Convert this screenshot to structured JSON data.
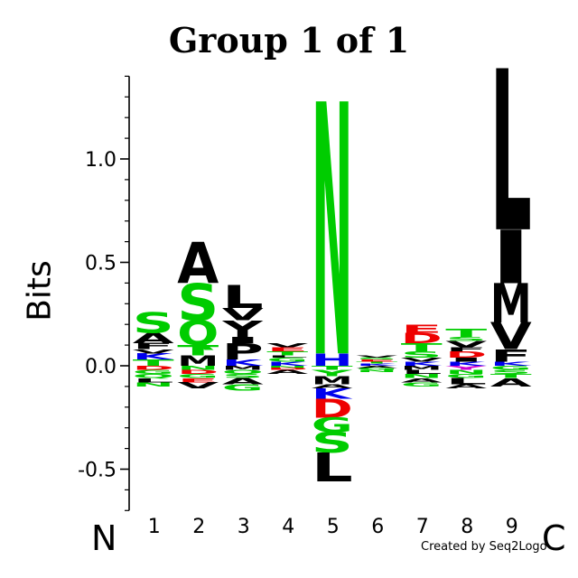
{
  "chart_data": {
    "type": "sequence_logo",
    "title": "Group 1 of 1",
    "ylabel": "Bits",
    "xlabel": "",
    "ylim": [
      -0.7,
      1.4
    ],
    "yticks": [
      -0.5,
      0.0,
      0.5,
      1.0
    ],
    "ytick_labels": [
      "-0.5",
      "0.0",
      "0.5",
      "1.0"
    ],
    "positions": [
      "1",
      "2",
      "3",
      "4",
      "5",
      "6",
      "7",
      "8",
      "9"
    ],
    "n_terminus": "N",
    "c_terminus": "C",
    "credit": "Created by Seq2Logo",
    "colors": {
      "green": "#00cc00",
      "blue": "#0000ee",
      "red": "#ee0000",
      "black": "#000000",
      "purple": "#cc00cc"
    },
    "columns": [
      {
        "position": "1",
        "positive": [
          {
            "letter": "T",
            "height": 0.03,
            "color": "green"
          },
          {
            "letter": "K",
            "height": 0.03,
            "color": "blue"
          },
          {
            "letter": "V",
            "height": 0.02,
            "color": "black"
          },
          {
            "letter": "F",
            "height": 0.03,
            "color": "black"
          },
          {
            "letter": "A",
            "height": 0.05,
            "color": "black"
          },
          {
            "letter": "S",
            "height": 0.1,
            "color": "green"
          }
        ],
        "negative": [
          {
            "letter": "D",
            "height": 0.02,
            "color": "red"
          },
          {
            "letter": "G",
            "height": 0.02,
            "color": "green"
          },
          {
            "letter": "Q",
            "height": 0.02,
            "color": "green"
          },
          {
            "letter": "L",
            "height": 0.02,
            "color": "black"
          },
          {
            "letter": "N",
            "height": 0.02,
            "color": "green"
          }
        ]
      },
      {
        "position": "2",
        "positive": [
          {
            "letter": "M",
            "height": 0.05,
            "color": "black"
          },
          {
            "letter": "T",
            "height": 0.05,
            "color": "green"
          },
          {
            "letter": "Q",
            "height": 0.12,
            "color": "green"
          },
          {
            "letter": "S",
            "height": 0.18,
            "color": "green"
          },
          {
            "letter": "A",
            "height": 0.2,
            "color": "black"
          }
        ],
        "negative": [
          {
            "letter": "N",
            "height": 0.02,
            "color": "green"
          },
          {
            "letter": "D",
            "height": 0.02,
            "color": "red"
          },
          {
            "letter": "G",
            "height": 0.02,
            "color": "green"
          },
          {
            "letter": "E",
            "height": 0.02,
            "color": "red"
          },
          {
            "letter": "V",
            "height": 0.03,
            "color": "black"
          }
        ]
      },
      {
        "position": "3",
        "positive": [
          {
            "letter": "K",
            "height": 0.03,
            "color": "blue"
          },
          {
            "letter": "P",
            "height": 0.08,
            "color": "black"
          },
          {
            "letter": "I",
            "height": 0.03,
            "color": "black"
          },
          {
            "letter": "Y",
            "height": 0.08,
            "color": "black"
          },
          {
            "letter": "V",
            "height": 0.06,
            "color": "black"
          },
          {
            "letter": "L",
            "height": 0.11,
            "color": "black"
          }
        ],
        "negative": [
          {
            "letter": "M",
            "height": 0.02,
            "color": "black"
          },
          {
            "letter": "Q",
            "height": 0.02,
            "color": "green"
          },
          {
            "letter": "S",
            "height": 0.02,
            "color": "green"
          },
          {
            "letter": "A",
            "height": 0.03,
            "color": "black"
          },
          {
            "letter": "G",
            "height": 0.03,
            "color": "green"
          }
        ]
      },
      {
        "position": "4",
        "positive": [
          {
            "letter": "K",
            "height": 0.02,
            "color": "blue"
          },
          {
            "letter": "G",
            "height": 0.02,
            "color": "green"
          },
          {
            "letter": "L",
            "height": 0.01,
            "color": "black"
          },
          {
            "letter": "T",
            "height": 0.02,
            "color": "green"
          },
          {
            "letter": "E",
            "height": 0.02,
            "color": "red"
          },
          {
            "letter": "V",
            "height": 0.02,
            "color": "black"
          }
        ],
        "negative": [
          {
            "letter": "N",
            "height": 0.01,
            "color": "green"
          },
          {
            "letter": "D",
            "height": 0.01,
            "color": "red"
          },
          {
            "letter": "A",
            "height": 0.02,
            "color": "black"
          }
        ]
      },
      {
        "position": "5",
        "positive": [
          {
            "letter": "H",
            "height": 0.06,
            "color": "blue"
          },
          {
            "letter": "N",
            "height": 1.22,
            "color": "green"
          }
        ],
        "negative": [
          {
            "letter": "T",
            "height": 0.02,
            "color": "green"
          },
          {
            "letter": "Y",
            "height": 0.03,
            "color": "green"
          },
          {
            "letter": "M",
            "height": 0.04,
            "color": "black"
          },
          {
            "letter": "A",
            "height": 0.02,
            "color": "black"
          },
          {
            "letter": "K",
            "height": 0.05,
            "color": "blue"
          },
          {
            "letter": "D",
            "height": 0.09,
            "color": "red"
          },
          {
            "letter": "G",
            "height": 0.07,
            "color": "green"
          },
          {
            "letter": "S",
            "height": 0.1,
            "color": "green"
          },
          {
            "letter": "L",
            "height": 0.14,
            "color": "black"
          }
        ]
      },
      {
        "position": "6",
        "positive": [
          {
            "letter": "K",
            "height": 0.01,
            "color": "blue"
          },
          {
            "letter": "T",
            "height": 0.01,
            "color": "green"
          },
          {
            "letter": "E",
            "height": 0.01,
            "color": "red"
          },
          {
            "letter": "S",
            "height": 0.01,
            "color": "green"
          },
          {
            "letter": "V",
            "height": 0.01,
            "color": "black"
          }
        ],
        "negative": [
          {
            "letter": "A",
            "height": 0.01,
            "color": "black"
          },
          {
            "letter": "G",
            "height": 0.01,
            "color": "green"
          },
          {
            "letter": "N",
            "height": 0.01,
            "color": "green"
          }
        ]
      },
      {
        "position": "7",
        "positive": [
          {
            "letter": "K",
            "height": 0.02,
            "color": "blue"
          },
          {
            "letter": "V",
            "height": 0.02,
            "color": "black"
          },
          {
            "letter": "S",
            "height": 0.03,
            "color": "green"
          },
          {
            "letter": "T",
            "height": 0.04,
            "color": "green"
          },
          {
            "letter": "D",
            "height": 0.05,
            "color": "red"
          },
          {
            "letter": "E",
            "height": 0.04,
            "color": "red"
          }
        ],
        "negative": [
          {
            "letter": "M",
            "height": 0.02,
            "color": "black"
          },
          {
            "letter": "L",
            "height": 0.02,
            "color": "black"
          },
          {
            "letter": "N",
            "height": 0.02,
            "color": "green"
          },
          {
            "letter": "A",
            "height": 0.02,
            "color": "black"
          },
          {
            "letter": "G",
            "height": 0.02,
            "color": "green"
          }
        ]
      },
      {
        "position": "8",
        "positive": [
          {
            "letter": "K",
            "height": 0.02,
            "color": "blue"
          },
          {
            "letter": "I",
            "height": 0.02,
            "color": "black"
          },
          {
            "letter": "D",
            "height": 0.03,
            "color": "red"
          },
          {
            "letter": "F",
            "height": 0.02,
            "color": "black"
          },
          {
            "letter": "V",
            "height": 0.03,
            "color": "black"
          },
          {
            "letter": "S",
            "height": 0.02,
            "color": "green"
          },
          {
            "letter": "T",
            "height": 0.04,
            "color": "green"
          }
        ],
        "negative": [
          {
            "letter": "Y",
            "height": 0.02,
            "color": "purple"
          },
          {
            "letter": "N",
            "height": 0.02,
            "color": "green"
          },
          {
            "letter": "G",
            "height": 0.02,
            "color": "green"
          },
          {
            "letter": "L",
            "height": 0.03,
            "color": "black"
          },
          {
            "letter": "A",
            "height": 0.02,
            "color": "black"
          }
        ]
      },
      {
        "position": "9",
        "positive": [
          {
            "letter": "K",
            "height": 0.02,
            "color": "blue"
          },
          {
            "letter": "F",
            "height": 0.06,
            "color": "black"
          },
          {
            "letter": "V",
            "height": 0.13,
            "color": "black"
          },
          {
            "letter": "M",
            "height": 0.19,
            "color": "black"
          },
          {
            "letter": "I",
            "height": 0.26,
            "color": "black"
          },
          {
            "letter": "L",
            "height": 0.78,
            "color": "black"
          }
        ],
        "negative": [
          {
            "letter": "G",
            "height": 0.02,
            "color": "green"
          },
          {
            "letter": "S",
            "height": 0.02,
            "color": "green"
          },
          {
            "letter": "T",
            "height": 0.02,
            "color": "green"
          },
          {
            "letter": "A",
            "height": 0.04,
            "color": "black"
          }
        ]
      }
    ]
  }
}
